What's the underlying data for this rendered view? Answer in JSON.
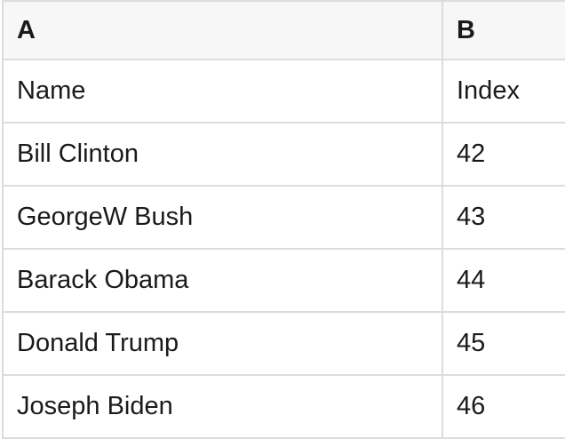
{
  "sheet": {
    "column_headers": [
      "A",
      "B"
    ],
    "header_row": {
      "col_a": "Name",
      "col_b": "Index"
    },
    "rows": [
      [
        "Name",
        "Index"
      ],
      [
        "Bill Clinton",
        "42"
      ],
      [
        "GeorgeW Bush",
        "43"
      ],
      [
        "Barack Obama",
        "44"
      ],
      [
        "Donald Trump",
        "45"
      ],
      [
        "Joseph Biden",
        "46"
      ]
    ]
  },
  "colors": {
    "header_bg": "#f7f7f7",
    "cell_bg": "#ffffff",
    "grid_border": "#dcdcdc",
    "text": "#1a1a1a"
  }
}
